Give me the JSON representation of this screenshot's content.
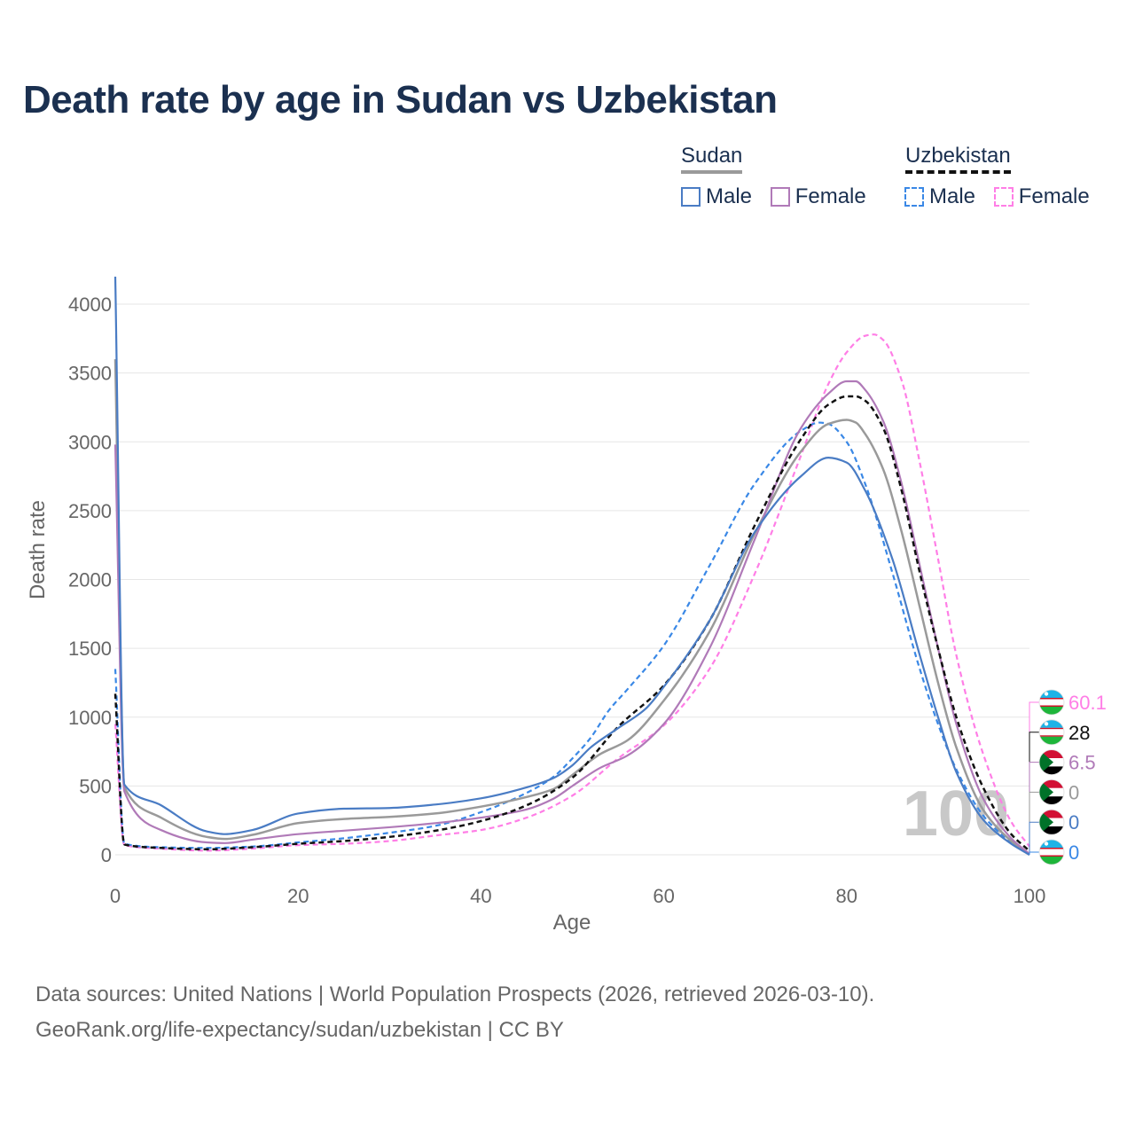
{
  "title": "Death rate by age in Sudan vs Uzbekistan",
  "legend": {
    "sudan": {
      "label": "Sudan",
      "male": "Male",
      "female": "Female"
    },
    "uzbekistan": {
      "label": "Uzbekistan",
      "male": "Male",
      "female": "Female"
    }
  },
  "footer": {
    "source": "Data sources: United Nations | World Population Prospects (2026, retrieved 2026-03-10).",
    "url": "GeoRank.org/life-expectancy/sudan/uzbekistan | CC BY"
  },
  "colors": {
    "sudan_male": "#4a7cc4",
    "sudan_female": "#b07ab8",
    "sudan_total": "#9a9a9a",
    "uzbekistan_male": "#3a88e6",
    "uzbekistan_female": "#ff7ee6",
    "uzbekistan_total": "#111111",
    "title": "#1b3050",
    "axis_text": "#666666",
    "watermark": "#c8c8c8"
  },
  "chart_data": {
    "type": "line",
    "title": "Death rate by age in Sudan vs Uzbekistan",
    "xlabel": "Age",
    "ylabel": "Death rate",
    "xlim": [
      0,
      100
    ],
    "ylim": [
      0,
      4200
    ],
    "xticks": [
      0,
      20,
      40,
      60,
      80,
      100
    ],
    "yticks": [
      0,
      500,
      1000,
      1500,
      2000,
      2500,
      3000,
      3500,
      4000
    ],
    "grid": true,
    "watermark": "100",
    "series": [
      {
        "id": "sudan_male",
        "name": "Sudan Male",
        "country": "Sudan",
        "dashed": false,
        "end_label": "0",
        "x": [
          0,
          1,
          5,
          10,
          12,
          15,
          20,
          25,
          30,
          35,
          40,
          45,
          48,
          50,
          52,
          55,
          58,
          60,
          65,
          70,
          75,
          78,
          80,
          82,
          85,
          88,
          90,
          92,
          95,
          98,
          100
        ],
        "y": [
          4200,
          510,
          360,
          170,
          150,
          180,
          300,
          335,
          340,
          365,
          410,
          490,
          560,
          650,
          780,
          920,
          1060,
          1220,
          1700,
          2350,
          2750,
          2885,
          2850,
          2650,
          2150,
          1450,
          1000,
          600,
          250,
          80,
          0
        ]
      },
      {
        "id": "sudan_female",
        "name": "Sudan Female",
        "country": "Sudan",
        "dashed": false,
        "end_label": "6.5",
        "x": [
          0,
          1,
          5,
          10,
          12,
          15,
          20,
          25,
          30,
          35,
          40,
          45,
          48,
          50,
          53,
          56,
          60,
          65,
          70,
          75,
          78,
          80,
          81,
          82,
          84,
          86,
          88,
          90,
          92,
          95,
          98,
          100
        ],
        "y": [
          2980,
          460,
          180,
          90,
          85,
          110,
          150,
          175,
          200,
          230,
          270,
          330,
          410,
          500,
          630,
          720,
          950,
          1500,
          2300,
          3100,
          3350,
          3440,
          3440,
          3380,
          3150,
          2700,
          2100,
          1500,
          950,
          400,
          120,
          6.5
        ]
      },
      {
        "id": "sudan_total",
        "name": "Sudan Total",
        "country": "Sudan",
        "dashed": false,
        "end_label": "0",
        "x": [
          0,
          1,
          5,
          10,
          12,
          15,
          20,
          25,
          30,
          35,
          40,
          45,
          48,
          50,
          53,
          56,
          60,
          65,
          70,
          75,
          78,
          80,
          81,
          82,
          84,
          86,
          88,
          90,
          92,
          95,
          98,
          100
        ],
        "y": [
          3600,
          490,
          270,
          130,
          115,
          145,
          230,
          260,
          275,
          300,
          350,
          420,
          480,
          580,
          730,
          830,
          1120,
          1620,
          2340,
          2930,
          3130,
          3160,
          3140,
          3060,
          2800,
          2350,
          1800,
          1250,
          780,
          320,
          100,
          0
        ]
      },
      {
        "id": "uzbekistan_male",
        "name": "Uzbekistan Male",
        "country": "Uzbekistan",
        "dashed": true,
        "end_label": "0",
        "x": [
          0,
          1,
          5,
          10,
          15,
          20,
          25,
          30,
          35,
          40,
          45,
          48,
          50,
          52,
          54,
          56,
          60,
          65,
          70,
          75,
          77,
          78,
          80,
          82,
          85,
          88,
          90,
          92,
          95,
          98,
          100
        ],
        "y": [
          1350,
          80,
          55,
          50,
          60,
          90,
          120,
          160,
          210,
          310,
          450,
          570,
          700,
          850,
          1050,
          1200,
          1520,
          2100,
          2700,
          3080,
          3140,
          3130,
          3000,
          2700,
          2050,
          1350,
          950,
          620,
          280,
          90,
          0
        ]
      },
      {
        "id": "uzbekistan_female",
        "name": "Uzbekistan Female",
        "country": "Uzbekistan",
        "dashed": true,
        "end_label": "60.1",
        "x": [
          0,
          1,
          5,
          10,
          15,
          20,
          25,
          30,
          35,
          40,
          45,
          50,
          55,
          60,
          65,
          70,
          75,
          78,
          80,
          82,
          83,
          84,
          86,
          88,
          90,
          92,
          95,
          98,
          100
        ],
        "y": [
          950,
          70,
          45,
          30,
          45,
          70,
          80,
          100,
          140,
          180,
          270,
          430,
          700,
          940,
          1350,
          2050,
          2900,
          3420,
          3650,
          3770,
          3780,
          3740,
          3450,
          2850,
          2150,
          1450,
          720,
          240,
          60.1
        ]
      },
      {
        "id": "uzbekistan_total",
        "name": "Uzbekistan Total",
        "country": "Uzbekistan",
        "dashed": true,
        "end_label": "28",
        "x": [
          0,
          1,
          5,
          10,
          15,
          20,
          25,
          30,
          35,
          40,
          45,
          50,
          55,
          60,
          65,
          70,
          75,
          78,
          80,
          81,
          82,
          84,
          86,
          88,
          90,
          92,
          95,
          98,
          100
        ],
        "y": [
          1170,
          75,
          50,
          40,
          55,
          80,
          100,
          130,
          175,
          245,
          360,
          560,
          930,
          1230,
          1700,
          2400,
          3020,
          3270,
          3330,
          3330,
          3300,
          3100,
          2650,
          2050,
          1500,
          1000,
          480,
          150,
          28
        ]
      }
    ]
  }
}
